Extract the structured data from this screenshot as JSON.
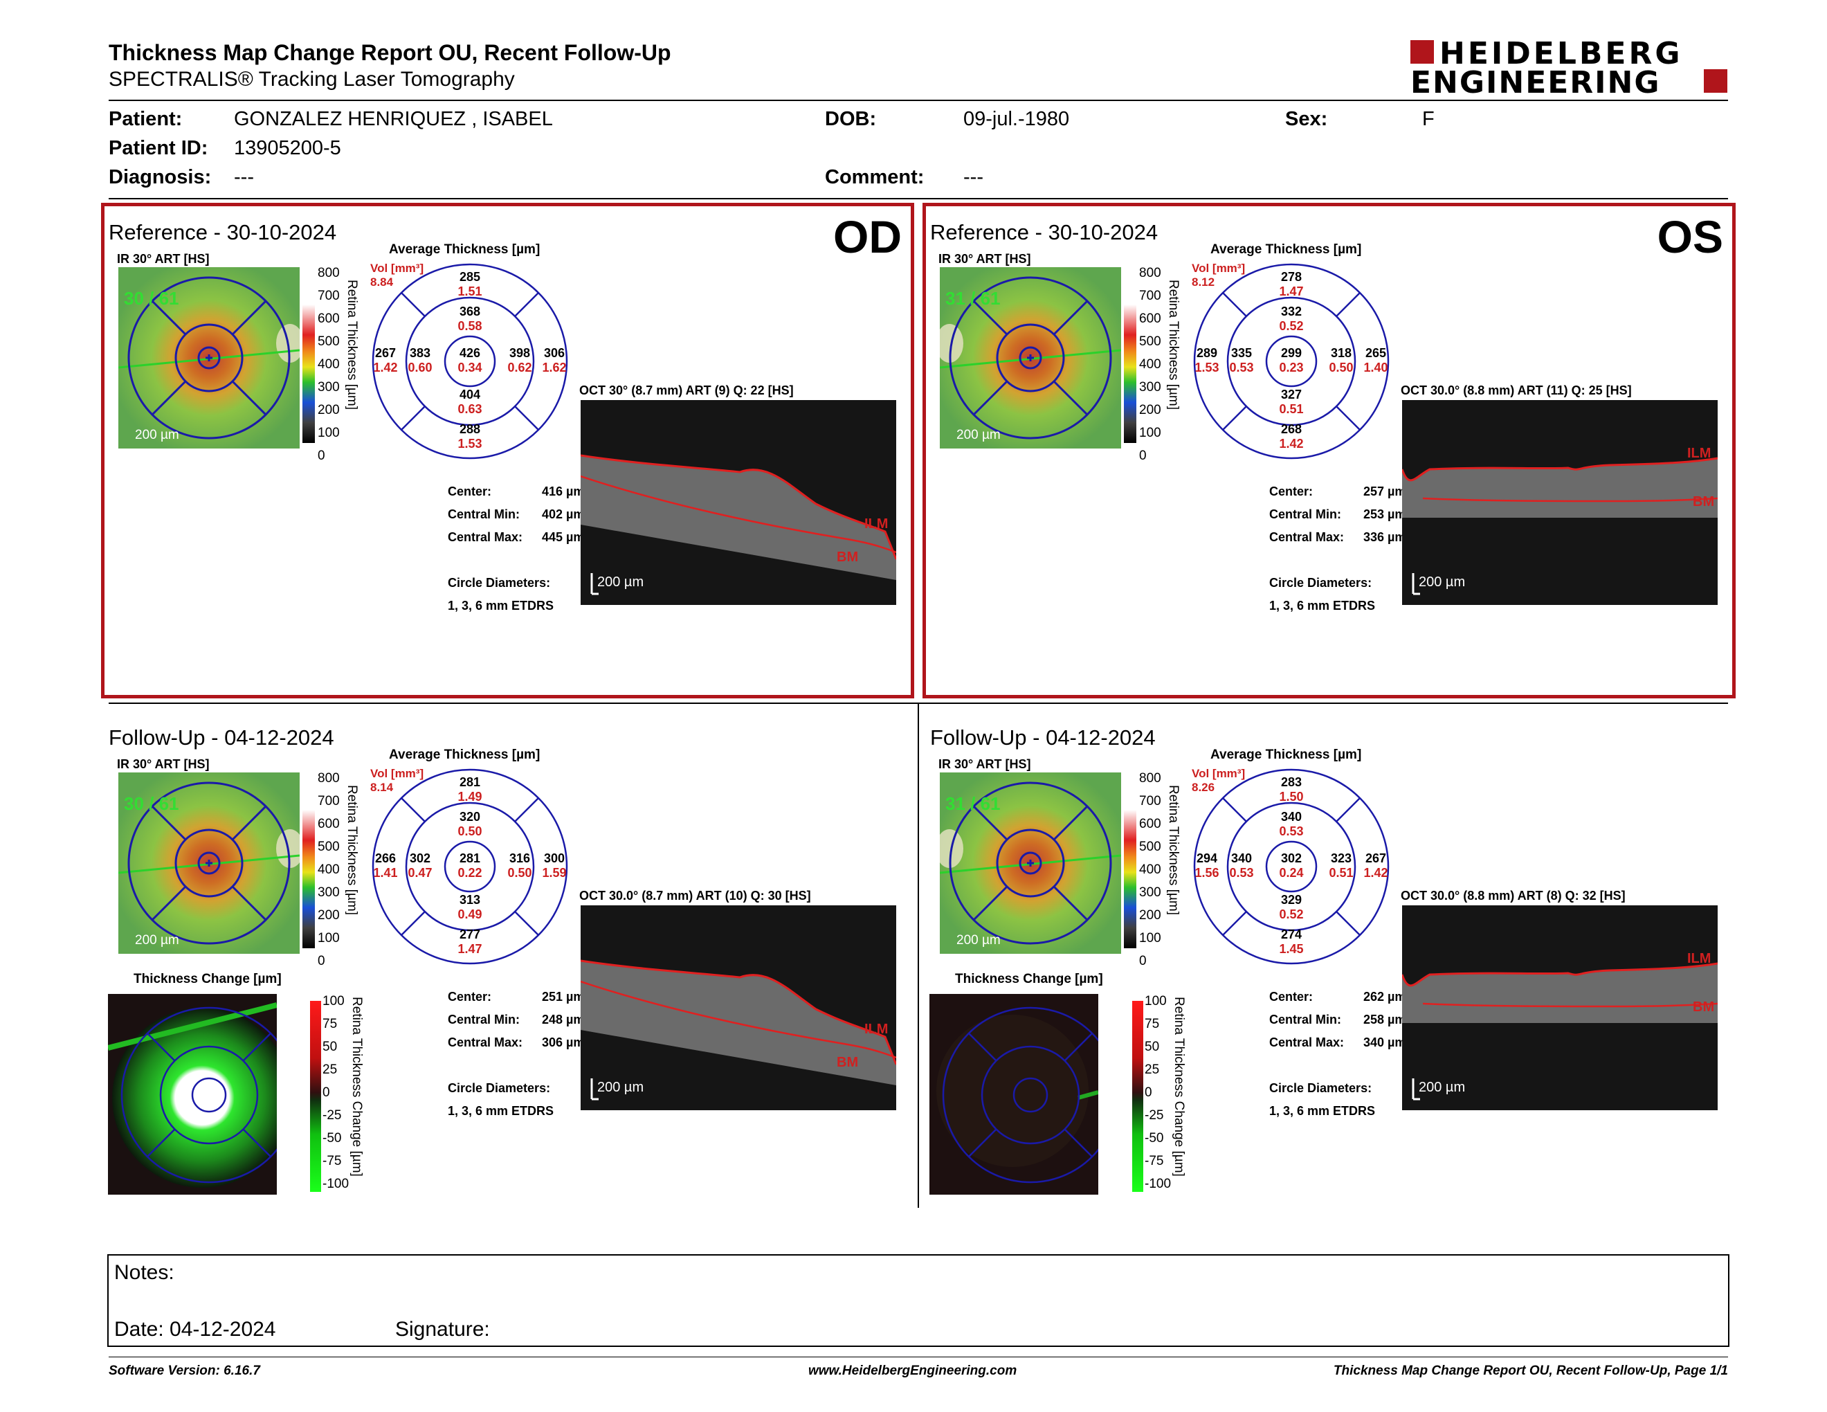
{
  "header": {
    "title": "Thickness Map Change Report OU, Recent Follow-Up",
    "subtitle": "SPECTRALIS® Tracking Laser Tomography",
    "logo_line1": "HEIDELBERG",
    "logo_line2": "ENGINEERING"
  },
  "patient": {
    "patient_label": "Patient:",
    "patient_value": "GONZALEZ HENRIQUEZ , ISABEL",
    "id_label": "Patient ID:",
    "id_value": "13905200-5",
    "diagnosis_label": "Diagnosis:",
    "diagnosis_value": "---",
    "dob_label": "DOB:",
    "dob_value": "09-jul.-1980",
    "comment_label": "Comment:",
    "comment_value": "---",
    "sex_label": "Sex:",
    "sex_value": "F"
  },
  "panels": {
    "od_ref": {
      "title": "Reference - 30-10-2024",
      "eye": "OD",
      "ir_label": "IR 30° ART [HS]",
      "ir_overlay": "30 / 61",
      "scale": "200 µm",
      "avg_title": "Average Thickness [µm]",
      "vol_label": "Vol [mm³]",
      "vol": "8.84",
      "top_o": "285",
      "top_o_v": "1.51",
      "top_i": "368",
      "top_i_v": "0.58",
      "left_o": "267",
      "left_o_v": "1.42",
      "left_i": "383",
      "left_i_v": "0.60",
      "center": "426",
      "center_v": "0.34",
      "right_i": "398",
      "right_i_v": "0.62",
      "right_o": "306",
      "right_o_v": "1.62",
      "bot_i": "404",
      "bot_i_v": "0.63",
      "bot_o": "288",
      "bot_o_v": "1.53",
      "center_lbl": "Center:",
      "center_val": "416 µm",
      "cmin_lbl": "Central Min:",
      "cmin_val": "402 µm",
      "cmax_lbl": "Central Max:",
      "cmax_val": "445 µm",
      "circ_lbl": "Circle Diameters:",
      "circ_val": "1, 3, 6 mm ETDRS",
      "oct_title": "OCT 30° (8.7 mm) ART (9) Q: 22 [HS]",
      "oct_scale": "200 µm",
      "ilm": "ILM",
      "bm": "BM"
    },
    "os_ref": {
      "title": "Reference - 30-10-2024",
      "eye": "OS",
      "ir_label": "IR 30° ART [HS]",
      "ir_overlay": "31 / 61",
      "scale": "200 µm",
      "avg_title": "Average Thickness [µm]",
      "vol_label": "Vol [mm³]",
      "vol": "8.12",
      "top_o": "278",
      "top_o_v": "1.47",
      "top_i": "332",
      "top_i_v": "0.52",
      "left_o": "289",
      "left_o_v": "1.53",
      "left_i": "335",
      "left_i_v": "0.53",
      "center": "299",
      "center_v": "0.23",
      "right_i": "318",
      "right_i_v": "0.50",
      "right_o": "265",
      "right_o_v": "1.40",
      "bot_i": "327",
      "bot_i_v": "0.51",
      "bot_o": "268",
      "bot_o_v": "1.42",
      "center_lbl": "Center:",
      "center_val": "257 µm",
      "cmin_lbl": "Central Min:",
      "cmin_val": "253 µm",
      "cmax_lbl": "Central Max:",
      "cmax_val": "336 µm",
      "circ_lbl": "Circle Diameters:",
      "circ_val": "1, 3, 6 mm ETDRS",
      "oct_title": "OCT 30.0° (8.8 mm) ART (11) Q: 25 [HS]",
      "oct_scale": "200 µm",
      "ilm": "ILM",
      "bm": "BM"
    },
    "od_fu": {
      "title": "Follow-Up - 04-12-2024",
      "eye": "",
      "ir_label": "IR 30° ART [HS]",
      "ir_overlay": "30 / 61",
      "scale": "200 µm",
      "avg_title": "Average Thickness [µm]",
      "vol_label": "Vol [mm³]",
      "vol": "8.14",
      "top_o": "281",
      "top_o_v": "1.49",
      "top_i": "320",
      "top_i_v": "0.50",
      "left_o": "266",
      "left_o_v": "1.41",
      "left_i": "302",
      "left_i_v": "0.47",
      "center": "281",
      "center_v": "0.22",
      "right_i": "316",
      "right_i_v": "0.50",
      "right_o": "300",
      "right_o_v": "1.59",
      "bot_i": "313",
      "bot_i_v": "0.49",
      "bot_o": "277",
      "bot_o_v": "1.47",
      "center_lbl": "Center:",
      "center_val": "251 µm",
      "cmin_lbl": "Central Min:",
      "cmin_val": "248 µm",
      "cmax_lbl": "Central Max:",
      "cmax_val": "306 µm",
      "circ_lbl": "Circle Diameters:",
      "circ_val": "1, 3, 6 mm ETDRS",
      "oct_title": "OCT 30.0° (8.7 mm) ART (10) Q: 30 [HS]",
      "oct_scale": "200 µm",
      "ilm": "ILM",
      "bm": "BM",
      "change_title": "Thickness Change [µm]"
    },
    "os_fu": {
      "title": "Follow-Up - 04-12-2024",
      "eye": "",
      "ir_label": "IR 30° ART [HS]",
      "ir_overlay": "31 / 61",
      "scale": "200 µm",
      "avg_title": "Average Thickness [µm]",
      "vol_label": "Vol [mm³]",
      "vol": "8.26",
      "top_o": "283",
      "top_o_v": "1.50",
      "top_i": "340",
      "top_i_v": "0.53",
      "left_o": "294",
      "left_o_v": "1.56",
      "left_i": "340",
      "left_i_v": "0.53",
      "center": "302",
      "center_v": "0.24",
      "right_i": "323",
      "right_i_v": "0.51",
      "right_o": "267",
      "right_o_v": "1.42",
      "bot_i": "329",
      "bot_i_v": "0.52",
      "bot_o": "274",
      "bot_o_v": "1.45",
      "center_lbl": "Center:",
      "center_val": "262 µm",
      "cmin_lbl": "Central Min:",
      "cmin_val": "258 µm",
      "cmax_lbl": "Central Max:",
      "cmax_val": "340 µm",
      "circ_lbl": "Circle Diameters:",
      "circ_val": "1, 3, 6 mm ETDRS",
      "oct_title": "OCT 30.0° (8.8 mm) ART (8) Q: 32 [HS]",
      "oct_scale": "200 µm",
      "ilm": "ILM",
      "bm": "BM",
      "change_title": "Thickness Change [µm]"
    }
  },
  "thickness_scale": {
    "ticks": [
      "800",
      "700",
      "600",
      "500",
      "400",
      "300",
      "200",
      "100",
      "0"
    ],
    "axis_label": "Retina Thickness [µm]"
  },
  "change_scale": {
    "ticks": [
      "100",
      "75",
      "50",
      "25",
      "0",
      "-25",
      "-50",
      "-75",
      "-100"
    ],
    "axis_label": "Retina Thickness Change [µm]"
  },
  "notes": {
    "notes_label": "Notes:",
    "date_label": "Date: 04-12-2024",
    "signature_label": "Signature:"
  },
  "footer": {
    "left": "Software Version: 6.16.7",
    "center": "www.HeidelbergEngineering.com",
    "right": "Thickness Map Change Report OU, Recent Follow-Up, Page 1/1"
  },
  "colors": {
    "accent_red": "#b0151b",
    "value_red": "#cc1f1f",
    "grid_blue": "#1a1aa8"
  }
}
